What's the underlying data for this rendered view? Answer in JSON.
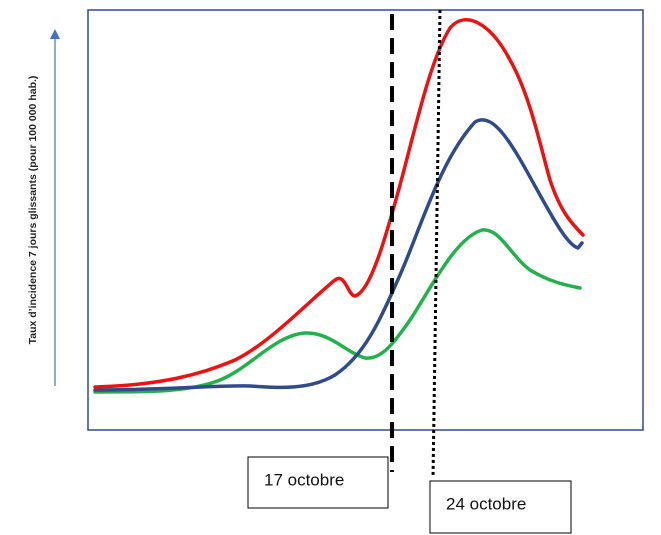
{
  "axis_label": "Taux d’incidence 7 jours glissants (pour 100 000 hab.)",
  "annotations": [
    {
      "label": "17 octobre"
    },
    {
      "label": "24 octobre"
    }
  ]
}
